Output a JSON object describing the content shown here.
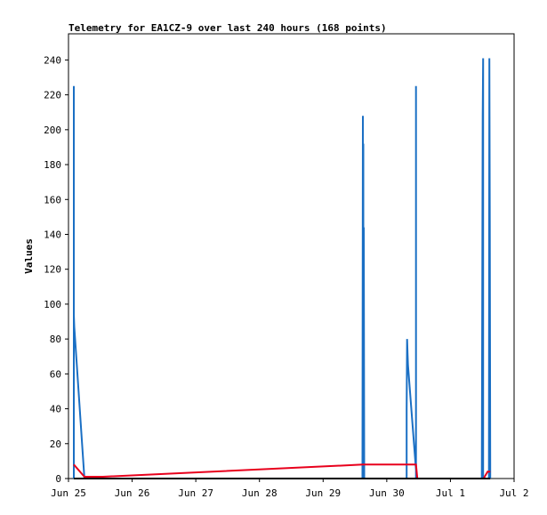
{
  "chart_data": {
    "type": "line",
    "title": "Telemetry for EA1CZ-9 over last 240 hours (168 points)",
    "xlabel": "",
    "ylabel": "Values",
    "x_unit": "days",
    "xlim": [
      "2025-06-25T00:00",
      "2025-07-02T00:00"
    ],
    "ylim": [
      0,
      255
    ],
    "yticks": [
      0,
      20,
      40,
      60,
      80,
      100,
      120,
      140,
      160,
      180,
      200,
      220,
      240
    ],
    "xticks": [
      {
        "value": "2025-06-25T00:00",
        "label": "Jun 25"
      },
      {
        "value": "2025-06-26T00:00",
        "label": "Jun 26"
      },
      {
        "value": "2025-06-27T00:00",
        "label": "Jun 27"
      },
      {
        "value": "2025-06-28T00:00",
        "label": "Jun 28"
      },
      {
        "value": "2025-06-29T00:00",
        "label": "Jun 29"
      },
      {
        "value": "2025-06-30T00:00",
        "label": "Jun 30"
      },
      {
        "value": "2025-07-01T00:00",
        "label": "Jul 1"
      },
      {
        "value": "2025-07-02T00:00",
        "label": "Jul 2"
      }
    ],
    "grid": false,
    "series": [
      {
        "color": "#1a6fc4",
        "points": [
          [
            "2025-06-25T02:00",
            0
          ],
          [
            "2025-06-25T02:00",
            225
          ],
          [
            "2025-06-25T02:00",
            94
          ],
          [
            "2025-06-25T02:10",
            87
          ],
          [
            "2025-06-25T06:00",
            0
          ],
          [
            "2025-06-25T06:00",
            0
          ],
          [
            "2025-06-29T14:50",
            0
          ],
          [
            "2025-06-29T15:00",
            208
          ],
          [
            "2025-06-29T15:00",
            2
          ],
          [
            "2025-06-29T15:10",
            192
          ],
          [
            "2025-06-29T15:10",
            2
          ],
          [
            "2025-06-29T15:20",
            144
          ],
          [
            "2025-06-29T15:30",
            0
          ],
          [
            "2025-06-30T07:30",
            0
          ],
          [
            "2025-06-30T07:30",
            40
          ],
          [
            "2025-06-30T07:40",
            80
          ],
          [
            "2025-06-30T07:50",
            72
          ],
          [
            "2025-06-30T08:00",
            65
          ],
          [
            "2025-06-30T11:00",
            5
          ],
          [
            "2025-06-30T11:00",
            225
          ],
          [
            "2025-06-30T11:00",
            0
          ],
          [
            "2025-07-01T11:50",
            0
          ],
          [
            "2025-07-01T12:00",
            104
          ],
          [
            "2025-07-01T12:10",
            208
          ],
          [
            "2025-07-01T12:20",
            241
          ],
          [
            "2025-07-01T12:20",
            0
          ],
          [
            "2025-07-01T14:30",
            0
          ],
          [
            "2025-07-01T14:40",
            241
          ],
          [
            "2025-07-01T14:50",
            145
          ],
          [
            "2025-07-01T15:00",
            0
          ]
        ]
      },
      {
        "color": "#e8001c",
        "points": [
          [
            "2025-06-25T02:00",
            8
          ],
          [
            "2025-06-25T06:00",
            1
          ],
          [
            "2025-06-25T13:00",
            1
          ],
          [
            "2025-06-29T15:00",
            8
          ],
          [
            "2025-06-30T07:30",
            8
          ],
          [
            "2025-06-30T11:00",
            8
          ],
          [
            "2025-06-30T11:30",
            0
          ],
          [
            "2025-07-01T12:30",
            0
          ],
          [
            "2025-07-01T14:00",
            4
          ],
          [
            "2025-07-01T15:00",
            4
          ]
        ]
      },
      {
        "color": "#000000",
        "points": [
          [
            "2025-06-25T02:00",
            0
          ],
          [
            "2025-07-01T15:00",
            0
          ]
        ]
      }
    ]
  }
}
